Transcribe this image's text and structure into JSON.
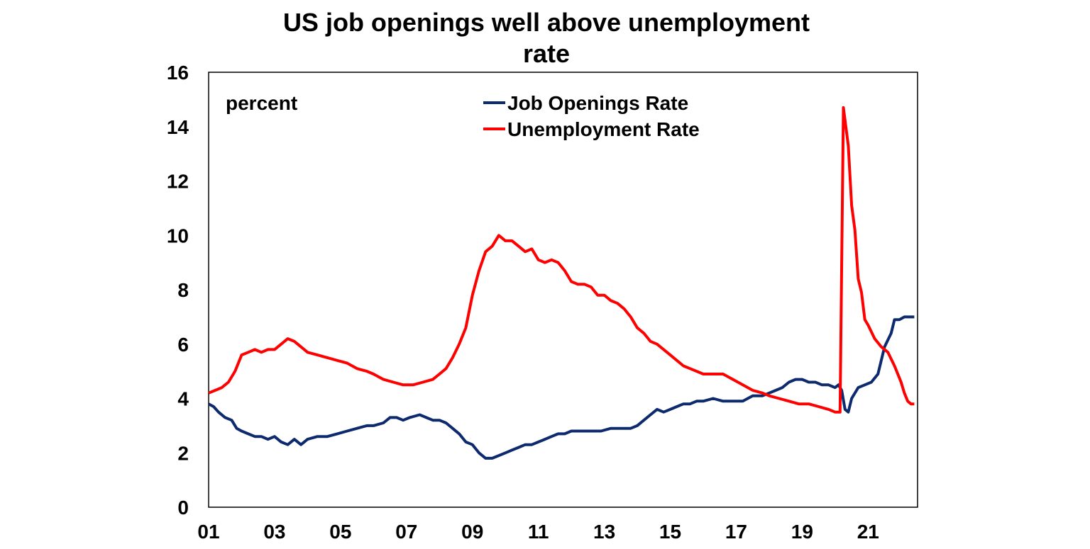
{
  "chart_data": {
    "type": "line",
    "title_line1": "US job openings well above unemployment",
    "title_line2": "rate",
    "units_label": "percent",
    "xlabel": "",
    "ylabel": "",
    "xlim": [
      2001.0,
      2022.5
    ],
    "ylim": [
      0,
      16
    ],
    "y_ticks": [
      "0",
      "2",
      "4",
      "6",
      "8",
      "10",
      "12",
      "14",
      "16"
    ],
    "x_ticks": [
      {
        "label": "01",
        "value": 2001
      },
      {
        "label": "03",
        "value": 2003
      },
      {
        "label": "05",
        "value": 2005
      },
      {
        "label": "07",
        "value": 2007
      },
      {
        "label": "09",
        "value": 2009
      },
      {
        "label": "11",
        "value": 2011
      },
      {
        "label": "13",
        "value": 2013
      },
      {
        "label": "15",
        "value": 2015
      },
      {
        "label": "17",
        "value": 2017
      },
      {
        "label": "19",
        "value": 2019
      },
      {
        "label": "21",
        "value": 2021
      }
    ],
    "grid": false,
    "legend_position": "top-center",
    "series": [
      {
        "name": "Job Openings Rate",
        "color": "#0d2a6e",
        "points": [
          [
            2001.0,
            3.8
          ],
          [
            2001.15,
            3.7
          ],
          [
            2001.3,
            3.5
          ],
          [
            2001.5,
            3.3
          ],
          [
            2001.7,
            3.2
          ],
          [
            2001.85,
            2.9
          ],
          [
            2002.0,
            2.8
          ],
          [
            2002.2,
            2.7
          ],
          [
            2002.4,
            2.6
          ],
          [
            2002.6,
            2.6
          ],
          [
            2002.8,
            2.5
          ],
          [
            2003.0,
            2.6
          ],
          [
            2003.2,
            2.4
          ],
          [
            2003.4,
            2.3
          ],
          [
            2003.6,
            2.5
          ],
          [
            2003.8,
            2.3
          ],
          [
            2004.0,
            2.5
          ],
          [
            2004.3,
            2.6
          ],
          [
            2004.6,
            2.6
          ],
          [
            2004.9,
            2.7
          ],
          [
            2005.2,
            2.8
          ],
          [
            2005.5,
            2.9
          ],
          [
            2005.8,
            3.0
          ],
          [
            2006.0,
            3.0
          ],
          [
            2006.3,
            3.1
          ],
          [
            2006.5,
            3.3
          ],
          [
            2006.7,
            3.3
          ],
          [
            2006.9,
            3.2
          ],
          [
            2007.1,
            3.3
          ],
          [
            2007.4,
            3.4
          ],
          [
            2007.6,
            3.3
          ],
          [
            2007.8,
            3.2
          ],
          [
            2008.0,
            3.2
          ],
          [
            2008.2,
            3.1
          ],
          [
            2008.4,
            2.9
          ],
          [
            2008.6,
            2.7
          ],
          [
            2008.8,
            2.4
          ],
          [
            2009.0,
            2.3
          ],
          [
            2009.2,
            2.0
          ],
          [
            2009.4,
            1.8
          ],
          [
            2009.6,
            1.8
          ],
          [
            2009.8,
            1.9
          ],
          [
            2010.0,
            2.0
          ],
          [
            2010.2,
            2.1
          ],
          [
            2010.4,
            2.2
          ],
          [
            2010.6,
            2.3
          ],
          [
            2010.8,
            2.3
          ],
          [
            2011.0,
            2.4
          ],
          [
            2011.2,
            2.5
          ],
          [
            2011.4,
            2.6
          ],
          [
            2011.6,
            2.7
          ],
          [
            2011.8,
            2.7
          ],
          [
            2012.0,
            2.8
          ],
          [
            2012.3,
            2.8
          ],
          [
            2012.6,
            2.8
          ],
          [
            2012.9,
            2.8
          ],
          [
            2013.2,
            2.9
          ],
          [
            2013.5,
            2.9
          ],
          [
            2013.8,
            2.9
          ],
          [
            2014.0,
            3.0
          ],
          [
            2014.2,
            3.2
          ],
          [
            2014.4,
            3.4
          ],
          [
            2014.6,
            3.6
          ],
          [
            2014.8,
            3.5
          ],
          [
            2015.0,
            3.6
          ],
          [
            2015.2,
            3.7
          ],
          [
            2015.4,
            3.8
          ],
          [
            2015.6,
            3.8
          ],
          [
            2015.8,
            3.9
          ],
          [
            2016.0,
            3.9
          ],
          [
            2016.3,
            4.0
          ],
          [
            2016.6,
            3.9
          ],
          [
            2016.9,
            3.9
          ],
          [
            2017.2,
            3.9
          ],
          [
            2017.5,
            4.1
          ],
          [
            2017.8,
            4.1
          ],
          [
            2018.0,
            4.2
          ],
          [
            2018.2,
            4.3
          ],
          [
            2018.4,
            4.4
          ],
          [
            2018.6,
            4.6
          ],
          [
            2018.8,
            4.7
          ],
          [
            2019.0,
            4.7
          ],
          [
            2019.2,
            4.6
          ],
          [
            2019.4,
            4.6
          ],
          [
            2019.6,
            4.5
          ],
          [
            2019.8,
            4.5
          ],
          [
            2020.0,
            4.4
          ],
          [
            2020.1,
            4.5
          ],
          [
            2020.2,
            4.3
          ],
          [
            2020.3,
            3.6
          ],
          [
            2020.4,
            3.5
          ],
          [
            2020.5,
            4.0
          ],
          [
            2020.7,
            4.4
          ],
          [
            2020.9,
            4.5
          ],
          [
            2021.1,
            4.6
          ],
          [
            2021.3,
            4.9
          ],
          [
            2021.5,
            5.9
          ],
          [
            2021.7,
            6.4
          ],
          [
            2021.8,
            6.9
          ],
          [
            2021.95,
            6.9
          ],
          [
            2022.1,
            7.0
          ],
          [
            2022.25,
            7.0
          ],
          [
            2022.4,
            7.0
          ]
        ]
      },
      {
        "name": "Unemployment Rate",
        "color": "#ff0000",
        "points": [
          [
            2001.0,
            4.2
          ],
          [
            2001.2,
            4.3
          ],
          [
            2001.4,
            4.4
          ],
          [
            2001.6,
            4.6
          ],
          [
            2001.8,
            5.0
          ],
          [
            2002.0,
            5.6
          ],
          [
            2002.2,
            5.7
          ],
          [
            2002.4,
            5.8
          ],
          [
            2002.6,
            5.7
          ],
          [
            2002.8,
            5.8
          ],
          [
            2003.0,
            5.8
          ],
          [
            2003.2,
            6.0
          ],
          [
            2003.4,
            6.2
          ],
          [
            2003.6,
            6.1
          ],
          [
            2003.8,
            5.9
          ],
          [
            2004.0,
            5.7
          ],
          [
            2004.3,
            5.6
          ],
          [
            2004.6,
            5.5
          ],
          [
            2004.9,
            5.4
          ],
          [
            2005.2,
            5.3
          ],
          [
            2005.5,
            5.1
          ],
          [
            2005.8,
            5.0
          ],
          [
            2006.0,
            4.9
          ],
          [
            2006.3,
            4.7
          ],
          [
            2006.6,
            4.6
          ],
          [
            2006.9,
            4.5
          ],
          [
            2007.2,
            4.5
          ],
          [
            2007.5,
            4.6
          ],
          [
            2007.8,
            4.7
          ],
          [
            2008.0,
            4.9
          ],
          [
            2008.2,
            5.1
          ],
          [
            2008.4,
            5.5
          ],
          [
            2008.6,
            6.0
          ],
          [
            2008.8,
            6.6
          ],
          [
            2009.0,
            7.8
          ],
          [
            2009.2,
            8.7
          ],
          [
            2009.4,
            9.4
          ],
          [
            2009.6,
            9.6
          ],
          [
            2009.8,
            10.0
          ],
          [
            2010.0,
            9.8
          ],
          [
            2010.2,
            9.8
          ],
          [
            2010.4,
            9.6
          ],
          [
            2010.6,
            9.4
          ],
          [
            2010.8,
            9.5
          ],
          [
            2011.0,
            9.1
          ],
          [
            2011.2,
            9.0
          ],
          [
            2011.4,
            9.1
          ],
          [
            2011.6,
            9.0
          ],
          [
            2011.8,
            8.7
          ],
          [
            2012.0,
            8.3
          ],
          [
            2012.2,
            8.2
          ],
          [
            2012.4,
            8.2
          ],
          [
            2012.6,
            8.1
          ],
          [
            2012.8,
            7.8
          ],
          [
            2013.0,
            7.8
          ],
          [
            2013.2,
            7.6
          ],
          [
            2013.4,
            7.5
          ],
          [
            2013.6,
            7.3
          ],
          [
            2013.8,
            7.0
          ],
          [
            2014.0,
            6.6
          ],
          [
            2014.2,
            6.4
          ],
          [
            2014.4,
            6.1
          ],
          [
            2014.6,
            6.0
          ],
          [
            2014.8,
            5.8
          ],
          [
            2015.0,
            5.6
          ],
          [
            2015.2,
            5.4
          ],
          [
            2015.4,
            5.2
          ],
          [
            2015.6,
            5.1
          ],
          [
            2015.8,
            5.0
          ],
          [
            2016.0,
            4.9
          ],
          [
            2016.3,
            4.9
          ],
          [
            2016.6,
            4.9
          ],
          [
            2016.9,
            4.7
          ],
          [
            2017.2,
            4.5
          ],
          [
            2017.5,
            4.3
          ],
          [
            2017.8,
            4.2
          ],
          [
            2018.0,
            4.1
          ],
          [
            2018.3,
            4.0
          ],
          [
            2018.6,
            3.9
          ],
          [
            2018.9,
            3.8
          ],
          [
            2019.2,
            3.8
          ],
          [
            2019.5,
            3.7
          ],
          [
            2019.8,
            3.6
          ],
          [
            2020.0,
            3.5
          ],
          [
            2020.15,
            3.5
          ],
          [
            2020.25,
            14.7
          ],
          [
            2020.4,
            13.3
          ],
          [
            2020.5,
            11.1
          ],
          [
            2020.6,
            10.2
          ],
          [
            2020.7,
            8.4
          ],
          [
            2020.8,
            7.9
          ],
          [
            2020.9,
            6.9
          ],
          [
            2021.0,
            6.7
          ],
          [
            2021.2,
            6.2
          ],
          [
            2021.4,
            5.9
          ],
          [
            2021.6,
            5.7
          ],
          [
            2021.8,
            5.2
          ],
          [
            2022.0,
            4.6
          ],
          [
            2022.1,
            4.2
          ],
          [
            2022.2,
            3.9
          ],
          [
            2022.3,
            3.8
          ],
          [
            2022.4,
            3.8
          ]
        ]
      }
    ]
  }
}
